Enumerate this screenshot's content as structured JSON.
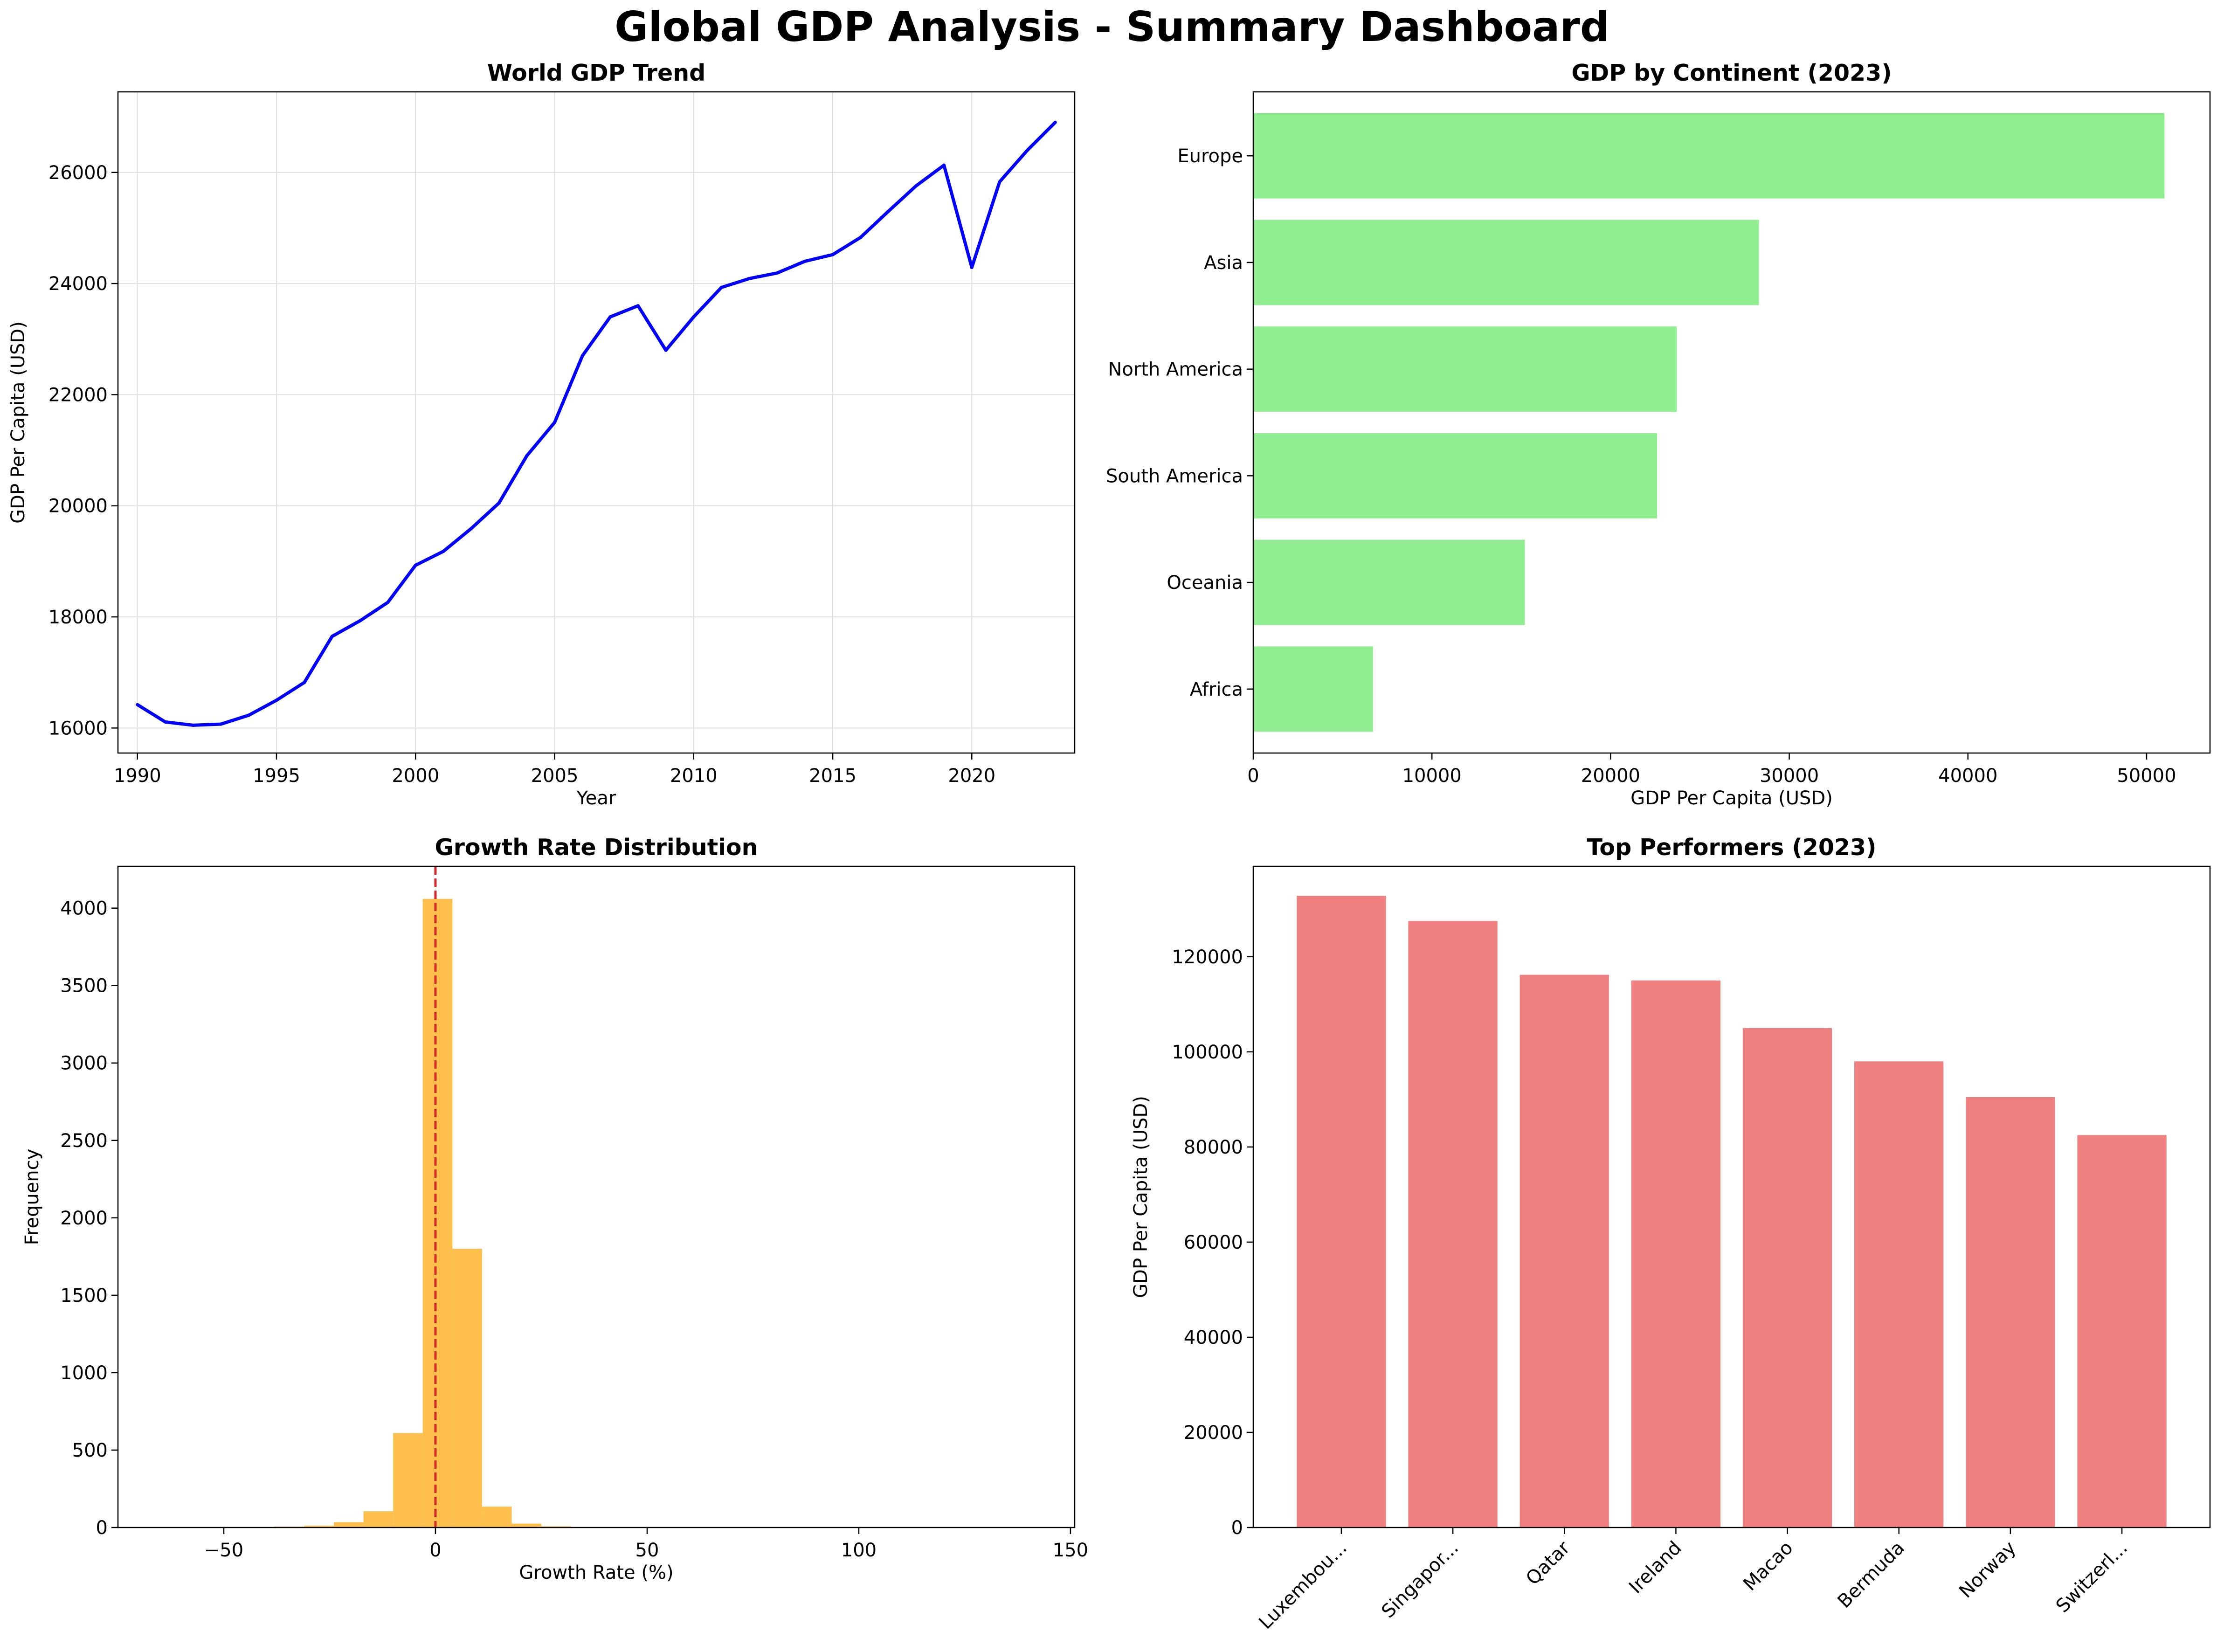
{
  "title": "Global GDP Analysis - Summary Dashboard",
  "colors": {
    "line": "#0000ff",
    "continent_bars": "#90ee90",
    "histogram": "#ffbf4d",
    "zero_line": "#d62728",
    "top_bars": "#f08080",
    "grid": "#e0e0e0"
  },
  "chart_data": [
    {
      "type": "line",
      "title": "World GDP Trend",
      "xlabel": "Year",
      "ylabel": "GDP Per Capita (USD)",
      "grid": true,
      "xlim": [
        1989.3,
        2023.7
      ],
      "ylim": [
        15550,
        27450
      ],
      "xticks": [
        1990,
        1995,
        2000,
        2005,
        2010,
        2015,
        2020
      ],
      "yticks": [
        16000,
        18000,
        20000,
        22000,
        24000,
        26000
      ],
      "x": [
        1990,
        1991,
        1992,
        1993,
        1994,
        1995,
        1996,
        1997,
        1998,
        1999,
        2000,
        2001,
        2002,
        2003,
        2004,
        2005,
        2006,
        2007,
        2008,
        2009,
        2010,
        2011,
        2012,
        2013,
        2014,
        2015,
        2016,
        2017,
        2018,
        2019,
        2020,
        2021,
        2022,
        2023
      ],
      "series": [
        {
          "values": [
            16420,
            16110,
            16050,
            16070,
            16230,
            16500,
            16820,
            17650,
            17930,
            18260,
            18930,
            19180,
            19590,
            20050,
            20900,
            21500,
            22700,
            23400,
            23600,
            22800,
            23400,
            23930,
            24090,
            24190,
            24400,
            24520,
            24830,
            25300,
            25760,
            26130,
            24290,
            25830,
            26400,
            26900
          ]
        }
      ]
    },
    {
      "type": "bar",
      "orientation": "horizontal",
      "title": "GDP by Continent (2023)",
      "xlabel": "GDP Per Capita (USD)",
      "ylabel": "",
      "xlim": [
        0,
        53550
      ],
      "xticks": [
        0,
        10000,
        20000,
        30000,
        40000,
        50000
      ],
      "categories": [
        "Africa",
        "Oceania",
        "South America",
        "North America",
        "Asia",
        "Europe"
      ],
      "values": [
        6700,
        15200,
        22600,
        23700,
        28300,
        51000
      ]
    },
    {
      "type": "bar",
      "subtype": "histogram",
      "title": "Growth Rate Distribution",
      "xlabel": "Growth Rate (%)",
      "ylabel": "Frequency",
      "xlim": [
        -75,
        151
      ],
      "ylim": [
        0,
        4270
      ],
      "xticks": [
        -50,
        0,
        50,
        100,
        150
      ],
      "yticks": [
        0,
        500,
        1000,
        1500,
        2000,
        2500,
        3000,
        3500,
        4000
      ],
      "reference_line_x": 0,
      "bin_width": 7,
      "bins_start": [
        -52,
        -45,
        -38,
        -31,
        -24,
        -17,
        -10,
        -3,
        4,
        11,
        18,
        25,
        32,
        39
      ],
      "values": [
        2,
        3,
        6,
        12,
        35,
        105,
        610,
        4060,
        1800,
        135,
        25,
        8,
        3,
        1
      ]
    },
    {
      "type": "bar",
      "title": "Top Performers (2023)",
      "xlabel": "",
      "ylabel": "GDP Per Capita (USD)",
      "ylim": [
        0,
        139000
      ],
      "yticks": [
        0,
        20000,
        40000,
        60000,
        80000,
        100000,
        120000
      ],
      "categories": [
        "Luxembou...",
        "Singapor...",
        "Qatar",
        "Ireland",
        "Macao",
        "Bermuda",
        "Norway",
        "Switzerl..."
      ],
      "values": [
        132800,
        127500,
        116200,
        115000,
        105000,
        98000,
        90500,
        82500
      ]
    }
  ]
}
